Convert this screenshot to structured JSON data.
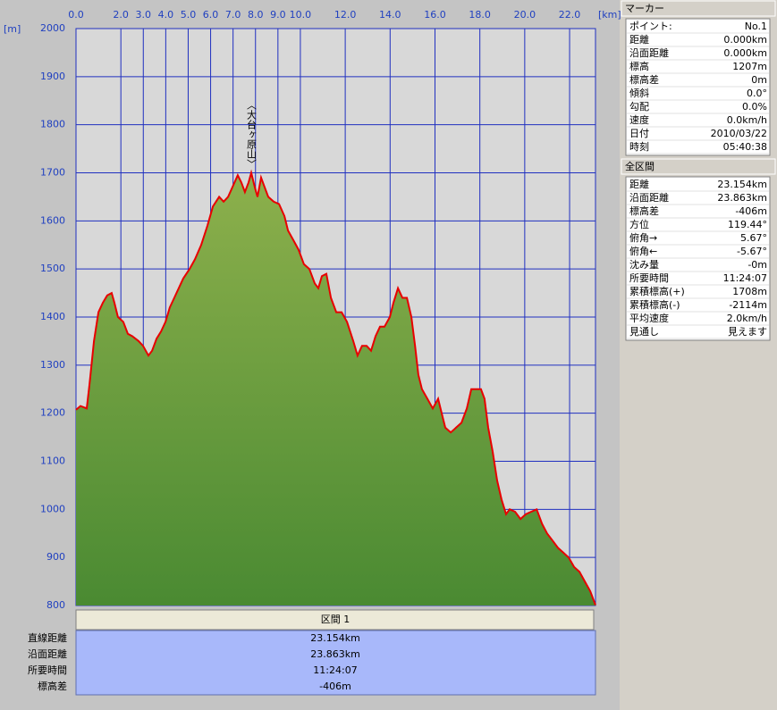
{
  "chart_data": {
    "type": "area",
    "x_unit": "[km]",
    "y_unit": "[m]",
    "annotation": "〈大台ヶ原山〉",
    "x": [
      0,
      0.2,
      0.48,
      0.6,
      0.8,
      1.0,
      1.2,
      1.39,
      1.59,
      1.71,
      1.87,
      2.11,
      2.31,
      2.51,
      2.79,
      2.99,
      3.23,
      3.39,
      3.59,
      3.79,
      3.99,
      4.18,
      4.38,
      4.58,
      4.78,
      5.06,
      5.3,
      5.58,
      5.86,
      6.1,
      6.38,
      6.58,
      6.78,
      6.97,
      7.21,
      7.37,
      7.53,
      7.69,
      7.81,
      7.97,
      8.09,
      8.25,
      8.41,
      8.57,
      8.81,
      9.05,
      9.29,
      9.45,
      9.69,
      9.92,
      10.16,
      10.4,
      10.64,
      10.8,
      10.96,
      11.16,
      11.36,
      11.6,
      11.84,
      12.08,
      12.36,
      12.55,
      12.75,
      12.95,
      13.15,
      13.35,
      13.55,
      13.75,
      13.99,
      14.15,
      14.35,
      14.55,
      14.75,
      14.95,
      15.11,
      15.26,
      15.42,
      15.66,
      15.9,
      16.14,
      16.3,
      16.46,
      16.7,
      16.94,
      17.18,
      17.42,
      17.62,
      17.82,
      18.05,
      18.21,
      18.37,
      18.57,
      18.77,
      18.97,
      19.17,
      19.33,
      19.57,
      19.81,
      20.05,
      20.29,
      20.53,
      20.77,
      21.0,
      21.24,
      21.48,
      21.72,
      21.96,
      22.2,
      22.44,
      22.68,
      22.92,
      23.154
    ],
    "series": [
      {
        "color": "#e80000",
        "values": [
          1207,
          1215,
          1210,
          1260,
          1350,
          1410,
          1430,
          1445,
          1450,
          1430,
          1400,
          1390,
          1365,
          1360,
          1350,
          1340,
          1320,
          1330,
          1355,
          1370,
          1390,
          1420,
          1440,
          1460,
          1480,
          1500,
          1520,
          1550,
          1590,
          1630,
          1650,
          1640,
          1650,
          1670,
          1695,
          1680,
          1660,
          1680,
          1700,
          1670,
          1650,
          1690,
          1670,
          1650,
          1640,
          1635,
          1610,
          1580,
          1560,
          1540,
          1510,
          1500,
          1470,
          1460,
          1485,
          1490,
          1440,
          1410,
          1410,
          1390,
          1350,
          1320,
          1340,
          1340,
          1330,
          1360,
          1380,
          1380,
          1400,
          1430,
          1460,
          1440,
          1440,
          1400,
          1340,
          1280,
          1250,
          1230,
          1210,
          1230,
          1200,
          1170,
          1160,
          1170,
          1180,
          1210,
          1250,
          1250,
          1250,
          1230,
          1170,
          1120,
          1060,
          1020,
          990,
          1000,
          995,
          980,
          990,
          995,
          1000,
          970,
          950,
          935,
          920,
          910,
          900,
          880,
          870,
          850,
          830,
          801
        ]
      }
    ],
    "fill_color": "#5f9a3c",
    "xlim": [
      0,
      23.154
    ],
    "xticks": [
      {
        "value": 0,
        "label": "0.0"
      },
      {
        "value": 2,
        "label": "2.0"
      },
      {
        "value": 3,
        "label": "3.0"
      },
      {
        "value": 4,
        "label": "4.0"
      },
      {
        "value": 5,
        "label": "5.0"
      },
      {
        "value": 6,
        "label": "6.0"
      },
      {
        "value": 7,
        "label": "7.0"
      },
      {
        "value": 8,
        "label": "8.0"
      },
      {
        "value": 9,
        "label": "9.0"
      },
      {
        "value": 10,
        "label": "10.0"
      },
      {
        "value": 12,
        "label": "12.0"
      },
      {
        "value": 14,
        "label": "14.0"
      },
      {
        "value": 16,
        "label": "16.0"
      },
      {
        "value": 18,
        "label": "18.0"
      },
      {
        "value": 20,
        "label": "20.0"
      },
      {
        "value": 22,
        "label": "22.0"
      }
    ],
    "ylim": [
      800,
      2000
    ],
    "yticks": [
      800,
      900,
      1000,
      1100,
      1200,
      1300,
      1400,
      1500,
      1600,
      1700,
      1800,
      1900,
      2000
    ],
    "grid": true
  },
  "section": {
    "title": "区間 1",
    "rows": [
      [
        "直線距離",
        "23.154km"
      ],
      [
        "沿面距離",
        "23.863km"
      ],
      [
        "所要時間",
        "11:24:07"
      ],
      [
        "標高差",
        "-406m"
      ]
    ]
  },
  "marker": {
    "title": "マーカー",
    "rows": [
      [
        "ポイント:",
        "No.1"
      ],
      [
        "距離",
        "0.000km"
      ],
      [
        "沿面距離",
        "0.000km"
      ],
      [
        "標高",
        "1207m"
      ],
      [
        "標高差",
        "0m"
      ],
      [
        "傾斜",
        "0.0°"
      ],
      [
        "勾配",
        "0.0%"
      ],
      [
        "速度",
        "0.0km/h"
      ],
      [
        "日付",
        "2010/03/22"
      ],
      [
        "時刻",
        "05:40:38"
      ]
    ]
  },
  "total": {
    "title": "全区間",
    "rows": [
      [
        "距離",
        "23.154km"
      ],
      [
        "沿面距離",
        "23.863km"
      ],
      [
        "標高差",
        "-406m"
      ],
      [
        "方位",
        "119.44°"
      ],
      [
        "俯角→",
        "5.67°"
      ],
      [
        "俯角←",
        "-5.67°"
      ],
      [
        "沈み量",
        "-0m"
      ],
      [
        "所要時間",
        "11:24:07"
      ],
      [
        "累積標高(+)",
        "1708m"
      ],
      [
        "累積標高(-)",
        "-2114m"
      ],
      [
        "平均速度",
        "2.0km/h"
      ],
      [
        "見通し",
        "見えます"
      ]
    ]
  }
}
